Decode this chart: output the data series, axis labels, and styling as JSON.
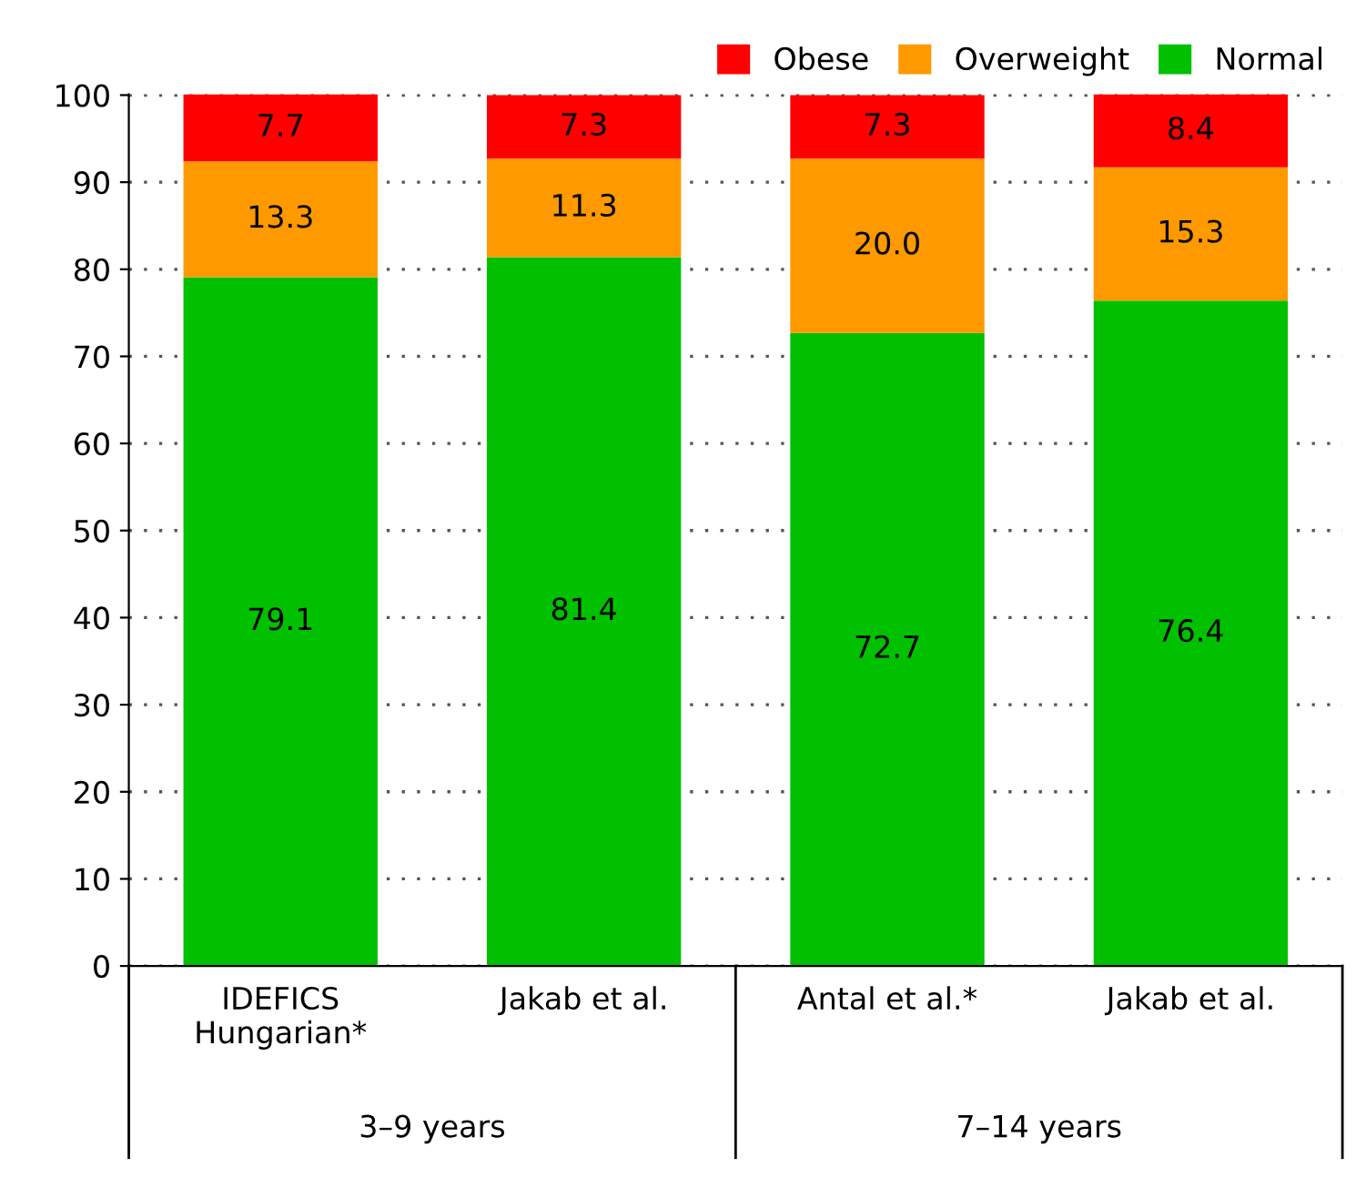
{
  "chart_data": {
    "type": "bar",
    "stacked": true,
    "categories": [
      "IDEFICS\nHungarian*",
      "Jakab et al.",
      "Antal et al.*",
      "Jakab et al."
    ],
    "series": [
      {
        "name": "Normal",
        "color": "#00c000",
        "values": [
          79.1,
          81.4,
          72.7,
          76.4
        ]
      },
      {
        "name": "Overweight",
        "color": "#ff9900",
        "values": [
          13.3,
          11.3,
          20.0,
          15.3
        ]
      },
      {
        "name": "Obese",
        "color": "#ff0000",
        "values": [
          7.7,
          7.3,
          7.3,
          8.4
        ]
      }
    ],
    "value_labels": [
      [
        "79.1",
        "81.4",
        "72.7",
        "76.4"
      ],
      [
        "13.3",
        "11.3",
        "20.0",
        "15.3"
      ],
      [
        "7.7",
        "7.3",
        "7.3",
        "8.4"
      ]
    ],
    "ylim": [
      0,
      100.1
    ],
    "yticks": [
      0,
      10,
      20,
      30,
      40,
      50,
      60,
      70,
      80,
      90,
      100
    ],
    "grid": "y",
    "legend": "top right",
    "annotations": [
      "3–9 years",
      "7–14 years"
    ]
  }
}
